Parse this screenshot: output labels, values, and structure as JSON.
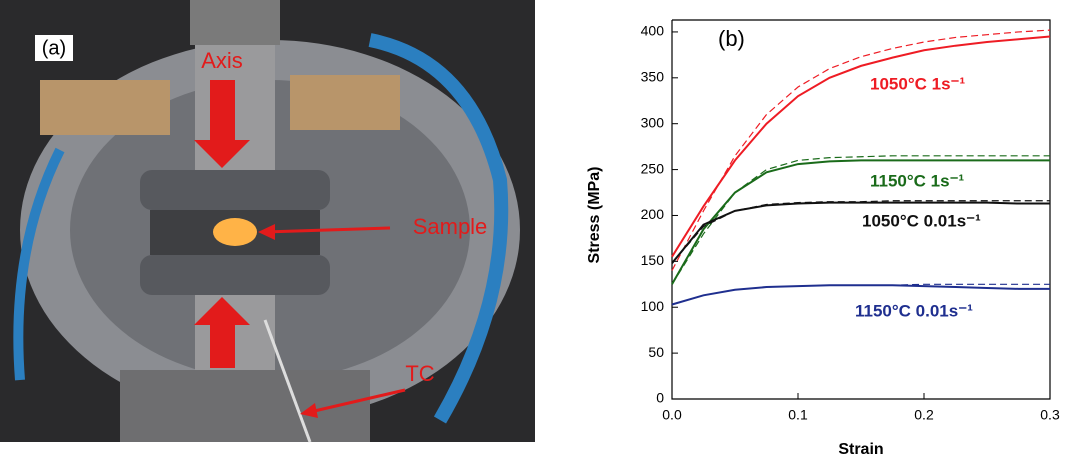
{
  "photo": {
    "label": "(a)",
    "annotations": [
      "Axis",
      "Sample",
      "TC"
    ]
  },
  "chart_data": {
    "type": "line",
    "label": "(b)",
    "xlabel": "Strain",
    "ylabel": "Stress (MPa)",
    "x": [
      0,
      0.025,
      0.05,
      0.075,
      0.1,
      0.125,
      0.15,
      0.175,
      0.2,
      0.225,
      0.25,
      0.275,
      0.3
    ],
    "series": [
      {
        "name": "1050°C 1s⁻¹",
        "color": "#ee1c24",
        "values": [
          155,
          210,
          260,
          300,
          330,
          350,
          363,
          372,
          380,
          385,
          389,
          392,
          395
        ],
        "dashed_values": [
          140,
          205,
          265,
          310,
          340,
          360,
          373,
          382,
          389,
          394,
          397,
          400,
          402
        ]
      },
      {
        "name": "1150°C 1s⁻¹",
        "color": "#1a6b1a",
        "values": [
          125,
          185,
          225,
          247,
          256,
          259,
          260,
          260,
          260,
          260,
          260,
          260,
          260
        ],
        "dashed_values": [
          125,
          180,
          225,
          250,
          260,
          263,
          264,
          265,
          265,
          265,
          265,
          265,
          265
        ]
      },
      {
        "name": "1050°C 0.01s⁻¹",
        "color": "#111111",
        "values": [
          148,
          190,
          205,
          211,
          213,
          214,
          214,
          214,
          214,
          214,
          214,
          213,
          213
        ],
        "dashed_values": [
          148,
          188,
          205,
          212,
          214,
          215,
          215,
          216,
          216,
          216,
          216,
          216,
          216
        ]
      },
      {
        "name": "1150°C 0.01s⁻¹",
        "color": "#1f2f8f",
        "values": [
          103,
          113,
          119,
          122,
          123,
          124,
          124,
          124,
          123,
          122,
          121,
          120,
          120
        ],
        "dashed_values": [
          103,
          113,
          119,
          122,
          123,
          124,
          124,
          124,
          125,
          125,
          125,
          125,
          125
        ]
      }
    ],
    "xlim": [
      0,
      0.3
    ],
    "xticks": [
      {
        "value": 0,
        "label": "0.0"
      },
      0.1,
      0.2,
      0.3
    ],
    "ylim": [
      0,
      413
    ],
    "yticks": [
      0,
      50,
      100,
      150,
      200,
      250,
      300,
      350,
      400
    ],
    "grid": false
  }
}
